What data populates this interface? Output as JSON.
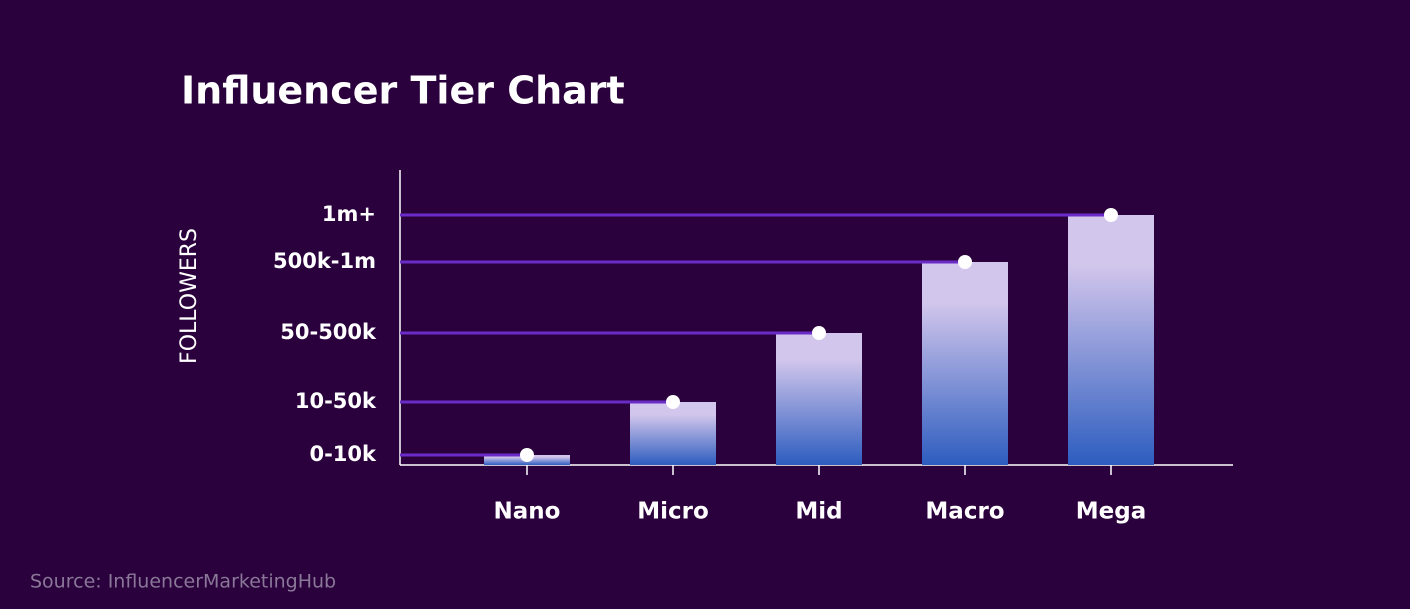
{
  "chart_data": {
    "type": "bar",
    "title": "Influencer Tier Chart",
    "y_label": "FOLLOWERS",
    "categories": [
      "Nano",
      "Micro",
      "Mid",
      "Macro",
      "Mega"
    ],
    "values": [
      10,
      63,
      132,
      203,
      250
    ],
    "ylim": [
      0,
      295
    ],
    "yticks": [
      {
        "value": 10,
        "label": "0-10k"
      },
      {
        "value": 63,
        "label": "10-50k"
      },
      {
        "value": 132,
        "label": "50-500k"
      },
      {
        "value": 203,
        "label": "500k-1m"
      },
      {
        "value": 250,
        "label": "1m+"
      }
    ],
    "grid": true,
    "grid_color": "#6a2bc7",
    "gradient": [
      "#d2c6ec",
      "#2d5dbf"
    ],
    "source": "Source: InfluencerMarketingHub"
  }
}
